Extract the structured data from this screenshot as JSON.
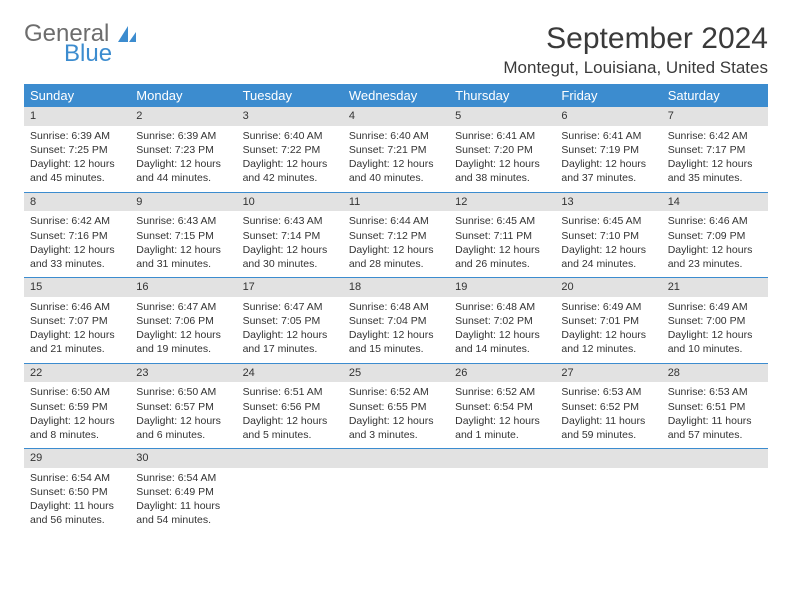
{
  "logo": {
    "text_general": "General",
    "text_blue": "Blue",
    "shape_color": "#3c8ccf"
  },
  "title": "September 2024",
  "location": "Montegut, Louisiana, United States",
  "colors": {
    "header_bg": "#3c8ccf",
    "header_text": "#ffffff",
    "daynum_bg": "#e2e2e2",
    "border": "#3c8ccf",
    "text": "#333333"
  },
  "day_headers": [
    "Sunday",
    "Monday",
    "Tuesday",
    "Wednesday",
    "Thursday",
    "Friday",
    "Saturday"
  ],
  "weeks": [
    [
      {
        "num": "1",
        "sunrise": "Sunrise: 6:39 AM",
        "sunset": "Sunset: 7:25 PM",
        "daylight": "Daylight: 12 hours and 45 minutes."
      },
      {
        "num": "2",
        "sunrise": "Sunrise: 6:39 AM",
        "sunset": "Sunset: 7:23 PM",
        "daylight": "Daylight: 12 hours and 44 minutes."
      },
      {
        "num": "3",
        "sunrise": "Sunrise: 6:40 AM",
        "sunset": "Sunset: 7:22 PM",
        "daylight": "Daylight: 12 hours and 42 minutes."
      },
      {
        "num": "4",
        "sunrise": "Sunrise: 6:40 AM",
        "sunset": "Sunset: 7:21 PM",
        "daylight": "Daylight: 12 hours and 40 minutes."
      },
      {
        "num": "5",
        "sunrise": "Sunrise: 6:41 AM",
        "sunset": "Sunset: 7:20 PM",
        "daylight": "Daylight: 12 hours and 38 minutes."
      },
      {
        "num": "6",
        "sunrise": "Sunrise: 6:41 AM",
        "sunset": "Sunset: 7:19 PM",
        "daylight": "Daylight: 12 hours and 37 minutes."
      },
      {
        "num": "7",
        "sunrise": "Sunrise: 6:42 AM",
        "sunset": "Sunset: 7:17 PM",
        "daylight": "Daylight: 12 hours and 35 minutes."
      }
    ],
    [
      {
        "num": "8",
        "sunrise": "Sunrise: 6:42 AM",
        "sunset": "Sunset: 7:16 PM",
        "daylight": "Daylight: 12 hours and 33 minutes."
      },
      {
        "num": "9",
        "sunrise": "Sunrise: 6:43 AM",
        "sunset": "Sunset: 7:15 PM",
        "daylight": "Daylight: 12 hours and 31 minutes."
      },
      {
        "num": "10",
        "sunrise": "Sunrise: 6:43 AM",
        "sunset": "Sunset: 7:14 PM",
        "daylight": "Daylight: 12 hours and 30 minutes."
      },
      {
        "num": "11",
        "sunrise": "Sunrise: 6:44 AM",
        "sunset": "Sunset: 7:12 PM",
        "daylight": "Daylight: 12 hours and 28 minutes."
      },
      {
        "num": "12",
        "sunrise": "Sunrise: 6:45 AM",
        "sunset": "Sunset: 7:11 PM",
        "daylight": "Daylight: 12 hours and 26 minutes."
      },
      {
        "num": "13",
        "sunrise": "Sunrise: 6:45 AM",
        "sunset": "Sunset: 7:10 PM",
        "daylight": "Daylight: 12 hours and 24 minutes."
      },
      {
        "num": "14",
        "sunrise": "Sunrise: 6:46 AM",
        "sunset": "Sunset: 7:09 PM",
        "daylight": "Daylight: 12 hours and 23 minutes."
      }
    ],
    [
      {
        "num": "15",
        "sunrise": "Sunrise: 6:46 AM",
        "sunset": "Sunset: 7:07 PM",
        "daylight": "Daylight: 12 hours and 21 minutes."
      },
      {
        "num": "16",
        "sunrise": "Sunrise: 6:47 AM",
        "sunset": "Sunset: 7:06 PM",
        "daylight": "Daylight: 12 hours and 19 minutes."
      },
      {
        "num": "17",
        "sunrise": "Sunrise: 6:47 AM",
        "sunset": "Sunset: 7:05 PM",
        "daylight": "Daylight: 12 hours and 17 minutes."
      },
      {
        "num": "18",
        "sunrise": "Sunrise: 6:48 AM",
        "sunset": "Sunset: 7:04 PM",
        "daylight": "Daylight: 12 hours and 15 minutes."
      },
      {
        "num": "19",
        "sunrise": "Sunrise: 6:48 AM",
        "sunset": "Sunset: 7:02 PM",
        "daylight": "Daylight: 12 hours and 14 minutes."
      },
      {
        "num": "20",
        "sunrise": "Sunrise: 6:49 AM",
        "sunset": "Sunset: 7:01 PM",
        "daylight": "Daylight: 12 hours and 12 minutes."
      },
      {
        "num": "21",
        "sunrise": "Sunrise: 6:49 AM",
        "sunset": "Sunset: 7:00 PM",
        "daylight": "Daylight: 12 hours and 10 minutes."
      }
    ],
    [
      {
        "num": "22",
        "sunrise": "Sunrise: 6:50 AM",
        "sunset": "Sunset: 6:59 PM",
        "daylight": "Daylight: 12 hours and 8 minutes."
      },
      {
        "num": "23",
        "sunrise": "Sunrise: 6:50 AM",
        "sunset": "Sunset: 6:57 PM",
        "daylight": "Daylight: 12 hours and 6 minutes."
      },
      {
        "num": "24",
        "sunrise": "Sunrise: 6:51 AM",
        "sunset": "Sunset: 6:56 PM",
        "daylight": "Daylight: 12 hours and 5 minutes."
      },
      {
        "num": "25",
        "sunrise": "Sunrise: 6:52 AM",
        "sunset": "Sunset: 6:55 PM",
        "daylight": "Daylight: 12 hours and 3 minutes."
      },
      {
        "num": "26",
        "sunrise": "Sunrise: 6:52 AM",
        "sunset": "Sunset: 6:54 PM",
        "daylight": "Daylight: 12 hours and 1 minute."
      },
      {
        "num": "27",
        "sunrise": "Sunrise: 6:53 AM",
        "sunset": "Sunset: 6:52 PM",
        "daylight": "Daylight: 11 hours and 59 minutes."
      },
      {
        "num": "28",
        "sunrise": "Sunrise: 6:53 AM",
        "sunset": "Sunset: 6:51 PM",
        "daylight": "Daylight: 11 hours and 57 minutes."
      }
    ],
    [
      {
        "num": "29",
        "sunrise": "Sunrise: 6:54 AM",
        "sunset": "Sunset: 6:50 PM",
        "daylight": "Daylight: 11 hours and 56 minutes."
      },
      {
        "num": "30",
        "sunrise": "Sunrise: 6:54 AM",
        "sunset": "Sunset: 6:49 PM",
        "daylight": "Daylight: 11 hours and 54 minutes."
      },
      null,
      null,
      null,
      null,
      null
    ]
  ]
}
